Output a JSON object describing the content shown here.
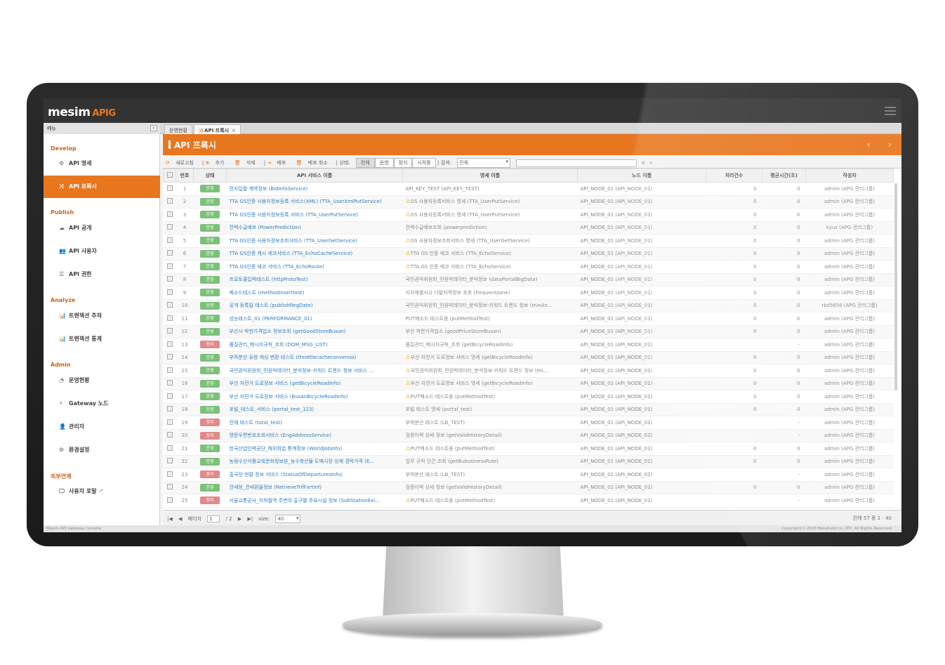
{
  "app": {
    "logo_text": "mesim",
    "logo_suffix": "APIG",
    "footer": "Mesim API Gateway Console",
    "copyright": "Copyright(c) 2020 Metabuild.co.,LTD. All Rights Reserved"
  },
  "sidebar": {
    "header": "메뉴",
    "collapse": "«",
    "sections": [
      {
        "label": "Develop",
        "items": [
          {
            "label": "API 명세",
            "icon": "gears-icon",
            "glyph": "⚙"
          },
          {
            "label": "API 프록시",
            "icon": "shuffle-icon",
            "glyph": "⤨",
            "active": true
          }
        ]
      },
      {
        "label": "Publish",
        "items": [
          {
            "label": "API 공개",
            "icon": "cloud-upload-icon",
            "glyph": "☁"
          },
          {
            "label": "API 사용자",
            "icon": "users-icon",
            "glyph": "👥"
          },
          {
            "label": "API 권한",
            "icon": "list-icon",
            "glyph": "☰"
          }
        ]
      },
      {
        "label": "Analyze",
        "items": [
          {
            "label": "트랜잭션 추적",
            "icon": "bar-chart-icon",
            "glyph": "📊"
          },
          {
            "label": "트랜잭션 통계",
            "icon": "bar-chart-icon",
            "glyph": "📊"
          }
        ]
      },
      {
        "label": "Admin",
        "items": [
          {
            "label": "운영현황",
            "icon": "dashboard-icon",
            "glyph": "◔"
          },
          {
            "label": "Gateway 노드",
            "icon": "plug-icon",
            "glyph": "⚡"
          },
          {
            "label": "관리자",
            "icon": "user-icon",
            "glyph": "👤"
          },
          {
            "label": "환경설정",
            "icon": "gear-icon",
            "glyph": "⚙"
          }
        ]
      },
      {
        "label": "외부연계",
        "items": [
          {
            "label": "사용자 포탈",
            "icon": "monitor-icon",
            "glyph": "🖵",
            "external": "↗"
          }
        ]
      }
    ]
  },
  "tabs": [
    {
      "label": "운영현황"
    },
    {
      "label": "API 프록시",
      "active": true,
      "close": "×"
    }
  ],
  "main": {
    "title": "API 프록시",
    "prev": "‹",
    "next": "›"
  },
  "toolbar": {
    "refresh": "새로고침",
    "add": "추가",
    "delete": "삭제",
    "deploy": "배포",
    "undeploy": "배포 취소",
    "status_label": "상태:",
    "status_filters": [
      "전체",
      "운영",
      "정지",
      "시작중"
    ],
    "status_selected": "전체",
    "search_label": "검색:",
    "search_field": "전체",
    "search_value": "",
    "clear": "×",
    "search_icon": "⌕"
  },
  "table": {
    "headers": [
      "번호",
      "상태",
      "API 서비스 이름",
      "명세 이름",
      "노드 이름",
      "처리건수",
      "평균시간(초)",
      "작성자"
    ],
    "status_colors": {
      "운영": "#7cc17a",
      "정지": "#e08a8a"
    },
    "rows": [
      [
        1,
        "운영",
        "전자입찰 계약정보 (BidInfoService)",
        "API_KEY_TEST (API_KEY_TEST)",
        false,
        "API_NODE_01 (API_NODE_01)",
        "0",
        "0",
        "admin (APG 관리그룹)"
      ],
      [
        2,
        "운영",
        "TTA GS인증 사용자정보등록 서비스(XML) (TTA_UserXmlPutService)",
        "GS 사용자등록서비스 명세 (TTA_UserPutService)",
        true,
        "API_NODE_01 (API_NODE_01)",
        "0",
        "0",
        "admin (APG 관리그룹)"
      ],
      [
        3,
        "운영",
        "TTA GS인증 사용자정보등록 서비스 (TTA_UserPutService)",
        "GS 사용자등록서비스 명세 (TTA_UserPutService)",
        true,
        "API_NODE_01 (API_NODE_01)",
        "0",
        "0",
        "admin (APG 관리그룹)"
      ],
      [
        4,
        "운영",
        "전력수급예보 (PowerPrediction)",
        "전력수급예보조회 (powerprediction)",
        false,
        "API_NODE_01 (API_NODE_01)",
        "0",
        "0",
        "kyus (APG 관리그룹)"
      ],
      [
        5,
        "운영",
        "TTA GS인증 사용자정보조회서비스 (TTA_UserGetService)",
        "GS 사용자정보조회서비스 명세 (TTA_UserGetService)",
        true,
        "API_NODE_01 (API_NODE_01)",
        "0",
        "0",
        "admin (APG 관리그룹)"
      ],
      [
        6,
        "운영",
        "TTA GS인증 캐시 에코서비스 (TTA_EchoCacheService)",
        "TTA GS 인증 에코 서비스 (TTA_EchoService)",
        true,
        "API_NODE_01 (API_NODE_01)",
        "0",
        "0",
        "admin (APG 관리그룹)"
      ],
      [
        7,
        "운영",
        "TTA GS인증 에코 서비스 (TTA_EchoRoute)",
        "TTA GS 인증 에코 서비스 (TTA_EchoService)",
        true,
        "API_NODE_01 (API_NODE_01)",
        "0",
        "0",
        "admin (APG 관리그룹)"
      ],
      [
        8,
        "운영",
        "프로토콜입력테스트 (httpProtoTest)",
        "국민권익위원회_민원빅데이터_분석정보 (dataPortalBigData)",
        false,
        "API_NODE_01 (API_NODE_01)",
        "0",
        "0",
        "admin (APG 관리그룹)"
      ],
      [
        9,
        "운영",
        "메소드테스트 (methodInserttest)",
        "지자체별사고 다발지역정보 조회 (frequentzone)",
        false,
        "API_NODE_01 (API_NODE_01)",
        "0",
        "0",
        "admin (APG 관리그룹)"
      ],
      [
        10,
        "운영",
        "공개 등록일 테스트 (publishRegDate)",
        "국민권익위원회_민원빅데이터_분석정보-키워드 트렌드 정보 (minAn...",
        false,
        "API_NODE_01 (API_NODE_01)",
        "0",
        "0",
        "rkd5656 (APG 관리그룹)"
      ],
      [
        11,
        "운영",
        "성능테스트_01 (PERFORMANCE_01)",
        "PUT메소드 테스트용 (putMethodTest)",
        false,
        "API_NODE_01 (API_NODE_01)",
        "0",
        "0",
        "admin (APG 관리그룹)"
      ],
      [
        12,
        "운영",
        "부산시 착한가격업소 정보조회 (getGoodStoreBusan)",
        "부산 착한가격업소 (goodPriceStoreBusan)",
        false,
        "API_NODE_01 (API_NODE_01)",
        "0",
        "0",
        "admin (APG 관리그룹)"
      ],
      [
        13,
        "정지",
        "품질관리_메시지규칙_조회 (DQM_MSG_LIST)",
        "품질관리_메시지규칙_조회 (getBicycleRoadInfo)",
        false,
        "API_NODE_01 (API_NODE_01)",
        "",
        "-",
        "admin (APG 관리그룹)"
      ],
      [
        14,
        "운영",
        "부하분산 유량 캐싱 변환 테스트 (throttlecacheconversio)",
        "부산 자전거 도로정보 서비스 명세 (getBicycleRoadInfo)",
        true,
        "API_NODE_01 (API_NODE_01)",
        "0",
        "0",
        "admin (APG 관리그룹)"
      ],
      [
        15,
        "운영",
        "국민권익위원회_민원빅데이터_분석정보-키워드 트렌드 정보 서비스 ...",
        "국민권익위원회_민원빅데이터_분석정보-키워드 트렌드 정보 (mi...",
        true,
        "API_NODE_01 (API_NODE_01)",
        "0",
        "0",
        "admin (APG 관리그룹)"
      ],
      [
        16,
        "운영",
        "부산 자전거 도로정보 서비스 (getBicycleRoadInfo)",
        "부산 자전거 도로정보 서비스 명세 (getBicycleRoadInfo)",
        true,
        "API_NODE_01 (API_NODE_01)",
        "0",
        "0",
        "admin (APG 관리그룹)"
      ],
      [
        17,
        "운영",
        "부산 자전거 도로정보 서비스 (BusanBicycleRoadInfo)",
        "PUT메소드 테스트용 (putMethodTest)",
        true,
        "API_NODE_01 (API_NODE_01)",
        "0",
        "0",
        "admin (APG 관리그룹)"
      ],
      [
        18,
        "운영",
        "포털_테스트_서비스 (portal_test_123)",
        "포털 테스트 명세 (portal_test)",
        false,
        "API_NODE_01 (API_NODE_01)",
        "0",
        "0",
        "admin (APG 관리그룹)"
      ],
      [
        19,
        "정지",
        "전체 테스트 (total_test)",
        "부하분산 테스트 (LB_TEST)",
        false,
        "API_NODE_01 (API_NODE_01)",
        "",
        "-",
        "admin (APG 관리그룹)"
      ],
      [
        20,
        "정지",
        "영문우편번호조회서비스 (EngAddressService)",
        "검증이력 상세 정보 (getValidHistoryDetail)",
        false,
        "API_NODE_02 (API_NODE_02)",
        "",
        "-",
        "admin (APG 관리그룹)"
      ],
      [
        21,
        "운영",
        "한국산업인력공단_해외취업 통계정보 (WorldJobInfo)",
        "PUT메소드 테스트용 (putMethodTest)",
        true,
        "API_NODE_01 (API_NODE_01)",
        "0",
        "0",
        "admin (APG 관리그룹)"
      ],
      [
        22,
        "운영",
        "농림수산식품교육문화정보원_농수축산물 도매시장 상세 경락가격 (E...",
        "업무 규칙 단건 조회 (getBubusinessRule)",
        false,
        "API_NODE_01 (API_NODE_01)",
        "0",
        "0",
        "admin (APG 관리그룹)"
      ],
      [
        23,
        "정지",
        "출국장 현황 정보 서비스 (StatusOfDeparturesInfo)",
        "부하분산 테스트 (LB_TEST)",
        false,
        "API_NODE_02 (API_NODE_02)",
        "",
        "-",
        "admin (APG 관리그룹)"
      ],
      [
        24,
        "운영",
        "관세청_관세환율정보 (RetrieveTrifFxrtInf)",
        "검증이력 상세 정보 (getValidHistoryDetail)",
        false,
        "API_NODE_01 (API_NODE_01)",
        "0",
        "0",
        "admin (APG 관리그룹)"
      ],
      [
        25,
        "정지",
        "서울교통공사_지하철역 주변의 출구별 주요시설 정보 (SubStationExi...",
        "PUT메소드 테스트용 (putMethodTest)",
        true,
        "API_NODE_01 (API_NODE_01)",
        "",
        "-",
        "admin (APG 관리그룹)"
      ]
    ]
  },
  "pager": {
    "first": "|◀",
    "prev": "◀",
    "page_label": "페이지",
    "page": "1",
    "of": "/ 2",
    "next": "▶",
    "last": "▶|",
    "size_label": "size:",
    "size": "40",
    "total": "전체 57 중 1 - 40"
  },
  "colors": {
    "accent": "#e8761e",
    "running": "#7cc17a",
    "stopped": "#e08a8a",
    "link": "#2e7bbf"
  }
}
